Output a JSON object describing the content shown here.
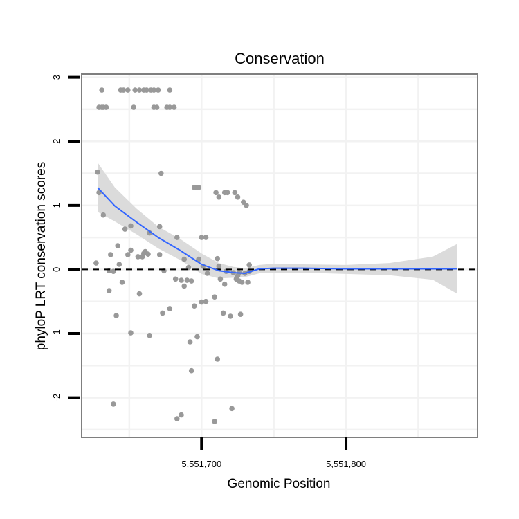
{
  "chart_data": {
    "type": "scatter",
    "title": "Conservation",
    "xlabel": "Genomic Position",
    "ylabel": "phyloP LRT conservation scores",
    "xlim": [
      5551617,
      5551891
    ],
    "ylim": [
      -2.62,
      3.05
    ],
    "x_ticks": [
      {
        "value": 5551700,
        "label": "5,551,700"
      },
      {
        "value": 5551800,
        "label": "5,551,800"
      }
    ],
    "y_ticks": [
      {
        "value": 3,
        "label": "3"
      },
      {
        "value": 2,
        "label": "2"
      },
      {
        "value": 1,
        "label": "1"
      },
      {
        "value": 0,
        "label": "0"
      },
      {
        "value": -1,
        "label": "-1"
      },
      {
        "value": -2,
        "label": "-2"
      }
    ],
    "grid": true,
    "reference_line": {
      "y": 0,
      "style": "dashed"
    },
    "colors": {
      "points": "#999999",
      "smooth_line": "#3366ff",
      "ribbon": "#d9d9d9",
      "panel_border": "#7f7f7f",
      "grid": "#f2f2f2"
    },
    "points": [
      [
        5551631,
        2.8
      ],
      [
        5551644,
        2.8
      ],
      [
        5551646,
        2.8
      ],
      [
        5551649,
        2.8
      ],
      [
        5551654,
        2.8
      ],
      [
        5551657,
        2.8
      ],
      [
        5551660,
        2.8
      ],
      [
        5551662,
        2.8
      ],
      [
        5551665,
        2.8
      ],
      [
        5551667,
        2.8
      ],
      [
        5551670,
        2.8
      ],
      [
        5551678,
        2.8
      ],
      [
        5551629,
        2.53
      ],
      [
        5551631,
        2.53
      ],
      [
        5551632,
        2.53
      ],
      [
        5551634,
        2.53
      ],
      [
        5551653,
        2.53
      ],
      [
        5551667,
        2.53
      ],
      [
        5551669,
        2.53
      ],
      [
        5551676,
        2.53
      ],
      [
        5551678,
        2.53
      ],
      [
        5551681,
        2.53
      ],
      [
        5551628,
        1.52
      ],
      [
        5551672,
        1.5
      ],
      [
        5551695,
        1.28
      ],
      [
        5551697,
        1.28
      ],
      [
        5551698,
        1.28
      ],
      [
        5551710,
        1.2
      ],
      [
        5551716,
        1.2
      ],
      [
        5551718,
        1.2
      ],
      [
        5551723,
        1.2
      ],
      [
        5551712,
        1.13
      ],
      [
        5551725,
        1.13
      ],
      [
        5551729,
        1.05
      ],
      [
        5551731,
        1.0
      ],
      [
        5551629,
        1.2
      ],
      [
        5551632,
        0.85
      ],
      [
        5551671,
        0.67
      ],
      [
        5551651,
        0.68
      ],
      [
        5551647,
        0.63
      ],
      [
        5551664,
        0.57
      ],
      [
        5551683,
        0.5
      ],
      [
        5551700,
        0.5
      ],
      [
        5551703,
        0.5
      ],
      [
        5551642,
        0.37
      ],
      [
        5551651,
        0.3
      ],
      [
        5551661,
        0.28
      ],
      [
        5551660,
        0.25
      ],
      [
        5551663,
        0.24
      ],
      [
        5551637,
        0.23
      ],
      [
        5551649,
        0.23
      ],
      [
        5551656,
        0.2
      ],
      [
        5551659,
        0.2
      ],
      [
        5551671,
        0.23
      ],
      [
        5551688,
        0.16
      ],
      [
        5551698,
        0.16
      ],
      [
        5551711,
        0.17
      ],
      [
        5551627,
        0.1
      ],
      [
        5551643,
        0.08
      ],
      [
        5551701,
        0.05
      ],
      [
        5551712,
        0.05
      ],
      [
        5551691,
        0.03
      ],
      [
        5551733,
        0.07
      ],
      [
        5551636,
        -0.02
      ],
      [
        5551639,
        -0.03
      ],
      [
        5551674,
        -0.02
      ],
      [
        5551704,
        -0.06
      ],
      [
        5551717,
        -0.03
      ],
      [
        5551722,
        -0.05
      ],
      [
        5551726,
        -0.05
      ],
      [
        5551730,
        -0.06
      ],
      [
        5551733,
        -0.03
      ],
      [
        5551725,
        -0.1
      ],
      [
        5551682,
        -0.15
      ],
      [
        5551686,
        -0.17
      ],
      [
        5551690,
        -0.17
      ],
      [
        5551693,
        -0.18
      ],
      [
        5551713,
        -0.15
      ],
      [
        5551724,
        -0.15
      ],
      [
        5551726,
        -0.18
      ],
      [
        5551728,
        -0.2
      ],
      [
        5551732,
        -0.2
      ],
      [
        5551645,
        -0.2
      ],
      [
        5551716,
        -0.23
      ],
      [
        5551688,
        -0.26
      ],
      [
        5551636,
        -0.33
      ],
      [
        5551657,
        -0.38
      ],
      [
        5551709,
        -0.43
      ],
      [
        5551703,
        -0.5
      ],
      [
        5551700,
        -0.51
      ],
      [
        5551695,
        -0.57
      ],
      [
        5551678,
        -0.61
      ],
      [
        5551673,
        -0.68
      ],
      [
        5551641,
        -0.72
      ],
      [
        5551715,
        -0.68
      ],
      [
        5551727,
        -0.7
      ],
      [
        5551720,
        -0.73
      ],
      [
        5551651,
        -0.99
      ],
      [
        5551664,
        -1.03
      ],
      [
        5551697,
        -1.05
      ],
      [
        5551692,
        -1.13
      ],
      [
        5551711,
        -1.4
      ],
      [
        5551693,
        -1.58
      ],
      [
        5551639,
        -2.1
      ],
      [
        5551721,
        -2.17
      ],
      [
        5551686,
        -2.27
      ],
      [
        5551683,
        -2.33
      ],
      [
        5551709,
        -2.37
      ]
    ],
    "smooth": {
      "x": [
        5551628,
        5551640,
        5551655,
        5551670,
        5551685,
        5551700,
        5551712,
        5551722,
        5551730,
        5551740,
        5551750,
        5551770,
        5551800,
        5551830,
        5551860,
        5551877
      ],
      "y": [
        1.28,
        0.99,
        0.74,
        0.5,
        0.3,
        0.08,
        -0.02,
        -0.05,
        -0.06,
        0.01,
        0.02,
        0.02,
        0.01,
        0.01,
        0.01,
        0.01
      ],
      "lower": [
        0.9,
        0.75,
        0.55,
        0.33,
        0.15,
        -0.07,
        -0.14,
        -0.13,
        -0.12,
        -0.06,
        -0.06,
        -0.05,
        -0.07,
        -0.09,
        -0.16,
        -0.38
      ],
      "upper": [
        1.67,
        1.28,
        0.95,
        0.67,
        0.48,
        0.25,
        0.1,
        0.04,
        0.02,
        0.07,
        0.09,
        0.08,
        0.07,
        0.1,
        0.2,
        0.4
      ]
    }
  }
}
